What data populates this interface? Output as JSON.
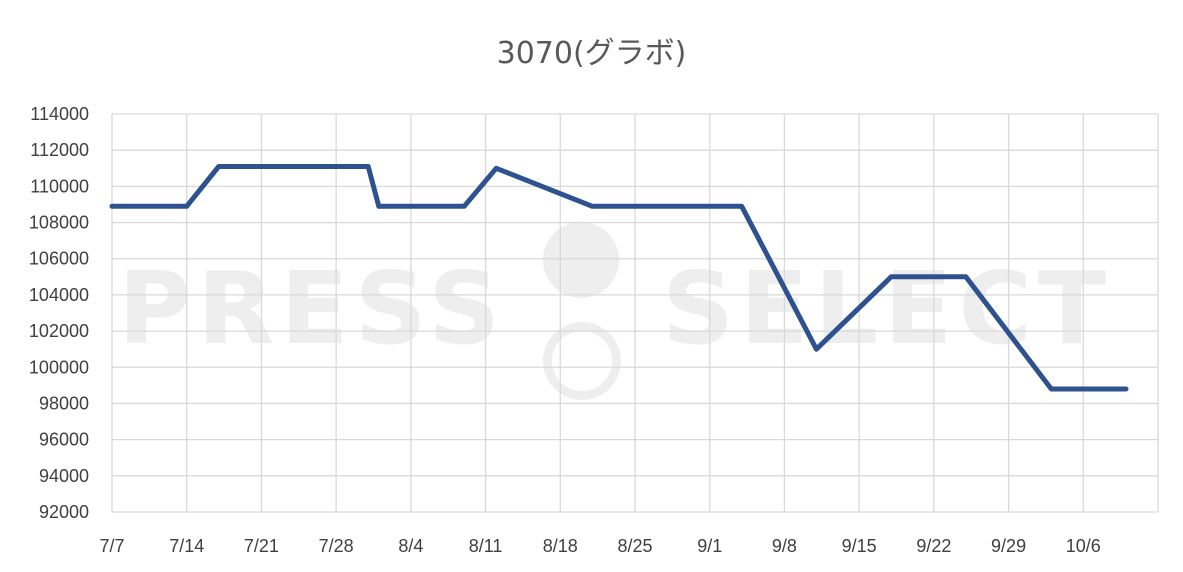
{
  "chart_data": {
    "type": "line",
    "title": "3070(グラボ)",
    "xlabel": "",
    "ylabel": "",
    "ylim": [
      92000,
      114000
    ],
    "ystep": 2000,
    "categories": [
      "7/7",
      "7/14",
      "7/21",
      "7/28",
      "8/4",
      "8/11",
      "8/18",
      "8/25",
      "9/1",
      "9/8",
      "9/15",
      "9/22",
      "9/29",
      "10/6"
    ],
    "grid": true,
    "legend": "none",
    "series": [
      {
        "name": "",
        "color": "#2e528f",
        "points": [
          {
            "x": "7/7",
            "y": 108900
          },
          {
            "x": "7/14",
            "y": 108900
          },
          {
            "x": "7/17",
            "y": 111100
          },
          {
            "x": "7/31",
            "y": 111100
          },
          {
            "x": "8/1",
            "y": 108900
          },
          {
            "x": "8/9",
            "y": 108900
          },
          {
            "x": "8/12",
            "y": 111000
          },
          {
            "x": "8/21",
            "y": 108900
          },
          {
            "x": "9/4",
            "y": 108900
          },
          {
            "x": "9/11",
            "y": 101000
          },
          {
            "x": "9/18",
            "y": 105000
          },
          {
            "x": "9/25",
            "y": 105000
          },
          {
            "x": "10/3",
            "y": 98800
          },
          {
            "x": "10/10",
            "y": 98800
          }
        ]
      }
    ]
  },
  "watermark": {
    "left_text": "PRESS",
    "right_text": "SELECT"
  }
}
